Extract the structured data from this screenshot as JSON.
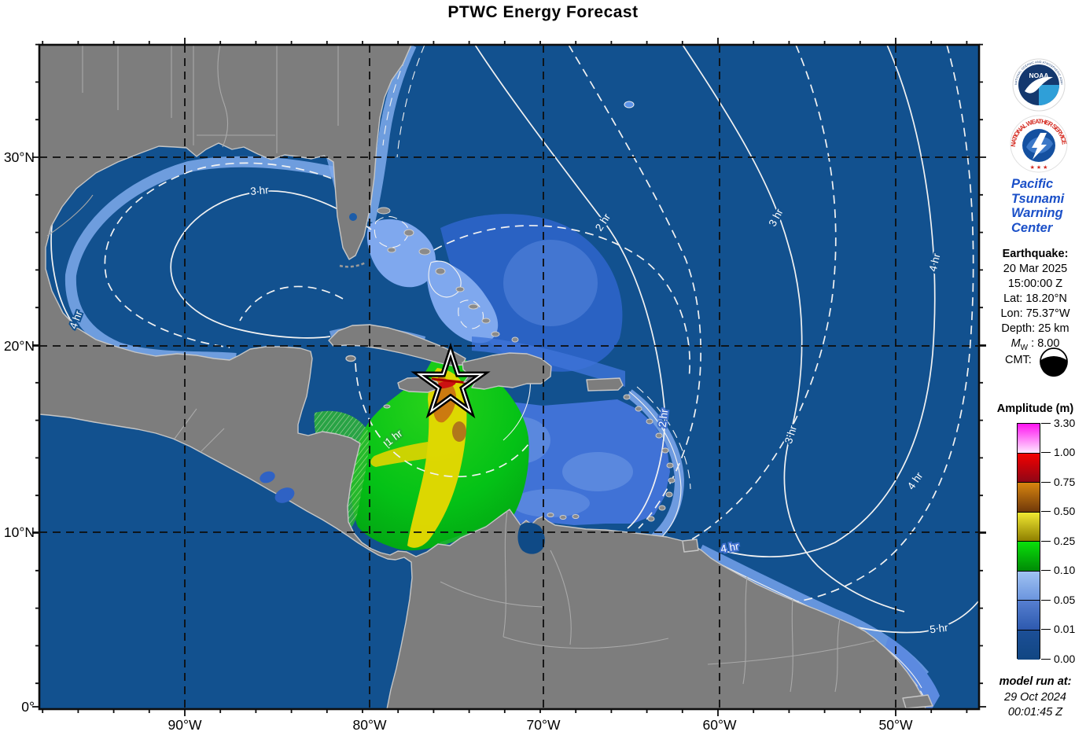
{
  "title": "PTWC Energy Forecast",
  "map": {
    "lat_labels": [
      "30°N",
      "20°N",
      "10°N",
      "0°"
    ],
    "lon_labels": [
      "90°W",
      "80°W",
      "70°W",
      "60°W",
      "50°W"
    ],
    "contour_labels": [
      "3 hr",
      "4 hr",
      "1 hr",
      "2 hr",
      "2 hr",
      "3 hr",
      "3 hr",
      "4 hr",
      "4 hr",
      "4 hr",
      "5 hr"
    ],
    "epicenter_symbol": "star"
  },
  "sidebar": {
    "noaa": {
      "label": "NOAA",
      "ring_top": "NATIONAL OCEANIC AND ATMOSPHERIC ADMINISTRATION",
      "ring_bottom": "U.S. DEPARTMENT OF COMMERCE"
    },
    "nws": {
      "ring": "NATIONAL WEATHER SERVICE",
      "stars": "★ ★ ★"
    },
    "ptwc": {
      "lines": [
        "Pacific",
        "Tsunami",
        "Warning",
        "Center"
      ]
    },
    "earthquake": {
      "heading": "Earthquake:",
      "date": "20 Mar 2025",
      "time": "15:00:00 Z",
      "lat": "Lat: 18.20°N",
      "lon": "Lon: 75.37°W",
      "depth": "Depth: 25 km",
      "mw_symbol": "M",
      "mw_sub": "W",
      "mw_value": " : 8.00",
      "cmt_label": "CMT:"
    },
    "colorbar": {
      "title": "Amplitude (m)",
      "labels": [
        "3.30",
        "1.00",
        "0.75",
        "0.50",
        "0.25",
        "0.10",
        "0.05",
        "0.01",
        "0.00"
      ],
      "segments": [
        {
          "top": "#ff14f0",
          "bottom": "#ffe6ff"
        },
        {
          "top": "#f40000",
          "bottom": "#8e0616"
        },
        {
          "top": "#d8850f",
          "bottom": "#70390a"
        },
        {
          "top": "#f0e832",
          "bottom": "#8e7f00"
        },
        {
          "top": "#0ae00a",
          "bottom": "#008a06"
        },
        {
          "top": "#a0c2f2",
          "bottom": "#6b95de"
        },
        {
          "top": "#567fd0",
          "bottom": "#2d59ae"
        },
        {
          "top": "#1c4f97",
          "bottom": "#114682"
        }
      ]
    },
    "model_run": {
      "heading": "model run at:",
      "date": "29 Oct 2024",
      "time": "00:01:45 Z"
    }
  },
  "palette": {
    "ocean_deep": "#12518f",
    "caribbean_blue": "#4072d6",
    "shallow_blue": "#7faaec",
    "land_grey": "#7d7d7d",
    "energy_green": "#00c814",
    "energy_yellow": "#e8d800",
    "energy_orange": "#cc7a10",
    "energy_red": "#cc1111",
    "contour_white": "#f2f2f2",
    "gridline_black": "#0d0d0d",
    "ptwc_blue": "#1b50c8",
    "nws_red": "#d42a20",
    "noaa_navy": "#14386e",
    "noaa_cyan": "#2f9fd8"
  }
}
